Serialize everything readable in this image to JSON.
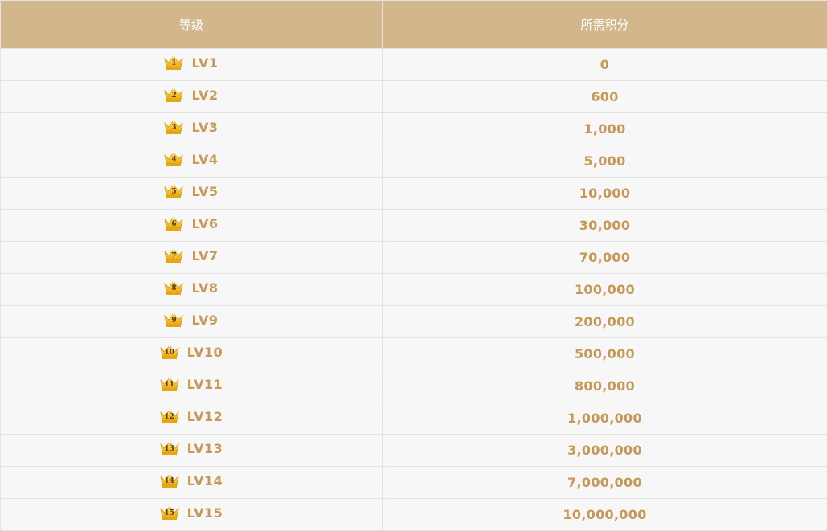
{
  "header": {
    "level": "等级",
    "points": "所需积分"
  },
  "colors": {
    "header_bg": "#d2b78c",
    "header_text": "#ffffff",
    "row_bg": "#f7f7f7",
    "cell_text": "#c59a58",
    "border": "#e3e3e3",
    "crown_gold": "#f5c52b"
  },
  "rows": [
    {
      "icon": "crown-icon",
      "badge": "1",
      "level": "LV1",
      "points": "0"
    },
    {
      "icon": "crown-icon",
      "badge": "2",
      "level": "LV2",
      "points": "600"
    },
    {
      "icon": "crown-icon",
      "badge": "3",
      "level": "LV3",
      "points": "1,000"
    },
    {
      "icon": "crown-icon",
      "badge": "4",
      "level": "LV4",
      "points": "5,000"
    },
    {
      "icon": "crown-icon",
      "badge": "5",
      "level": "LV5",
      "points": "10,000"
    },
    {
      "icon": "crown-icon",
      "badge": "6",
      "level": "LV6",
      "points": "30,000"
    },
    {
      "icon": "crown-icon",
      "badge": "7",
      "level": "LV7",
      "points": "70,000"
    },
    {
      "icon": "crown-icon",
      "badge": "8",
      "level": "LV8",
      "points": "100,000"
    },
    {
      "icon": "crown-icon",
      "badge": "9",
      "level": "LV9",
      "points": "200,000"
    },
    {
      "icon": "crown-icon",
      "badge": "10",
      "level": "LV10",
      "points": "500,000"
    },
    {
      "icon": "crown-icon",
      "badge": "11",
      "level": "LV11",
      "points": "800,000"
    },
    {
      "icon": "crown-icon",
      "badge": "12",
      "level": "LV12",
      "points": "1,000,000"
    },
    {
      "icon": "crown-icon",
      "badge": "13",
      "level": "LV13",
      "points": "3,000,000"
    },
    {
      "icon": "crown-icon",
      "badge": "14",
      "level": "LV14",
      "points": "7,000,000"
    },
    {
      "icon": "crown-icon",
      "badge": "15",
      "level": "LV15",
      "points": "10,000,000"
    }
  ]
}
